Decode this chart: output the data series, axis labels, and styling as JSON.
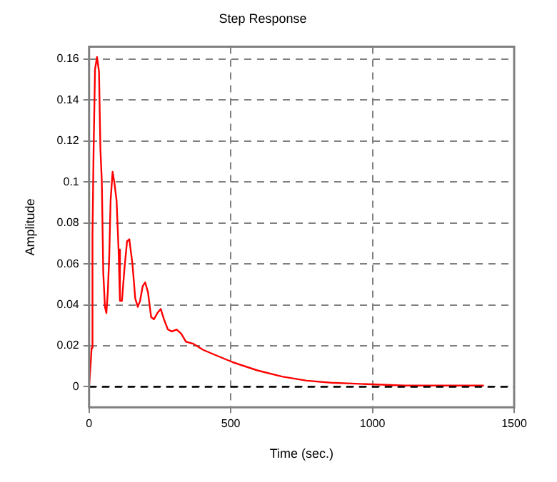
{
  "chart_data": {
    "type": "line",
    "title": "Step Response",
    "xlabel": "Time (sec.)",
    "ylabel": "Amplitude",
    "x": [
      0,
      5,
      9,
      12,
      16,
      21,
      28,
      35,
      40,
      45,
      50,
      56,
      61,
      66,
      71,
      76,
      83,
      90,
      97,
      104,
      109,
      116,
      125,
      134,
      142,
      153,
      163,
      172,
      180,
      189,
      198,
      208,
      219,
      229,
      241,
      253,
      264,
      278,
      292,
      309,
      325,
      342,
      368,
      403,
      437,
      472,
      507,
      594,
      681,
      768,
      854,
      941,
      1115,
      1393
    ],
    "series": [
      {
        "color": "#ff0000",
        "values": [
          0,
          0.01,
          0.019,
          0.074,
          0.116,
          0.155,
          0.161,
          0.154,
          0.116,
          0.1,
          0.056,
          0.039,
          0.036,
          0.046,
          0.063,
          0.091,
          0.105,
          0.099,
          0.091,
          0.067,
          0.042,
          0.042,
          0.058,
          0.071,
          0.072,
          0.06,
          0.043,
          0.039,
          0.042,
          0.049,
          0.051,
          0.046,
          0.034,
          0.033,
          0.036,
          0.038,
          0.033,
          0.028,
          0.027,
          0.028,
          0.026,
          0.022,
          0.021,
          0.018,
          0.016,
          0.014,
          0.012,
          0.008,
          0.005,
          0.003,
          0.002,
          0.0015,
          0.0006,
          0.0006
        ]
      }
    ],
    "xlim": [
      0,
      1500
    ],
    "xticks": [
      0,
      500,
      1000,
      1500
    ],
    "ylim": [
      -0.01,
      0.166
    ],
    "yticks": [
      0,
      0.02,
      0.04,
      0.06,
      0.08,
      0.1,
      0.12,
      0.14,
      0.16
    ],
    "grid": true,
    "legend": false,
    "marker": "none",
    "line_style": "solid",
    "ref_lines": [
      {
        "axis": "y",
        "value": 0,
        "color": "#000000",
        "line_style": "dashed"
      }
    ]
  }
}
